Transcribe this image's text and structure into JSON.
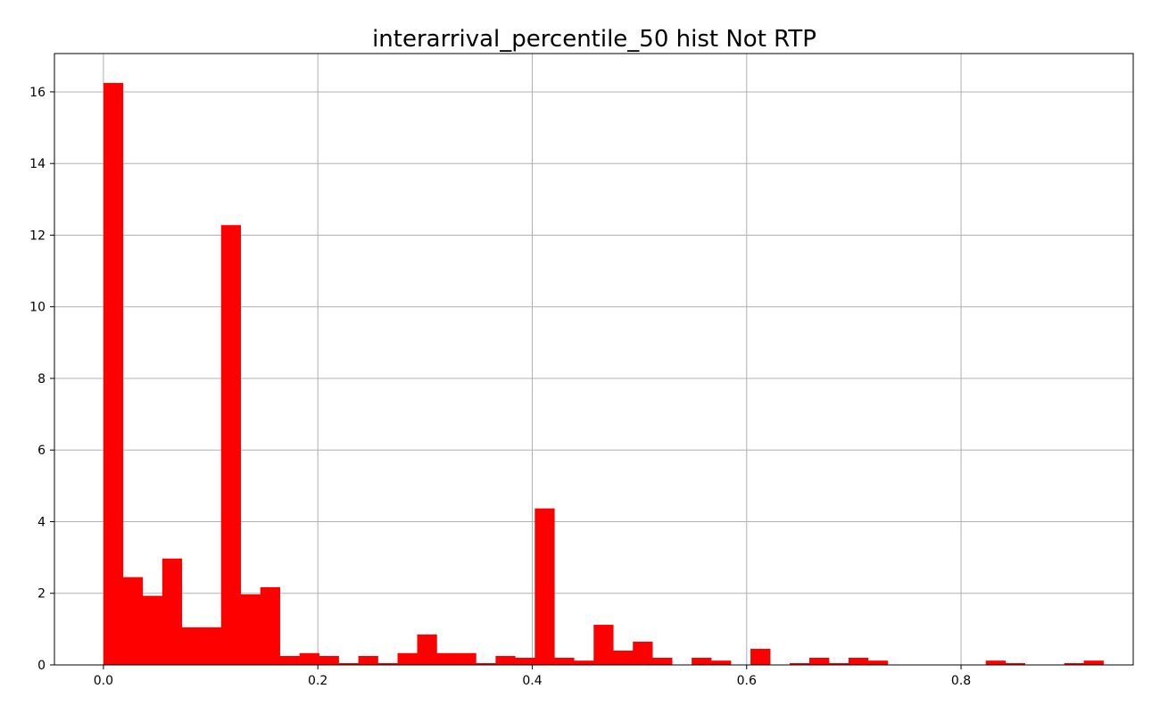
{
  "chart_data": {
    "type": "bar",
    "title": "interarrival_percentile_50 hist Not RTP",
    "xlabel": "",
    "ylabel": "",
    "xlim": [
      -0.0457,
      0.9606
    ],
    "ylim": [
      0,
      17.07
    ],
    "x_ticks": [
      0.0,
      0.2,
      0.4,
      0.6,
      0.8
    ],
    "x_tick_labels": [
      "0.0",
      "0.2",
      "0.4",
      "0.6",
      "0.8"
    ],
    "y_ticks": [
      0,
      2,
      4,
      6,
      8,
      10,
      12,
      14,
      16
    ],
    "y_tick_labels": [
      "0",
      "2",
      "4",
      "6",
      "8",
      "10",
      "12",
      "14",
      "16"
    ],
    "grid": true,
    "bar_color": "#ff0000",
    "bin_start": 0.0,
    "bin_width": 0.01829,
    "values": [
      16.25,
      2.45,
      1.93,
      2.97,
      1.05,
      1.05,
      12.28,
      1.97,
      2.17,
      0.25,
      0.33,
      0.25,
      0.05,
      0.25,
      0.05,
      0.33,
      0.85,
      0.33,
      0.33,
      0.05,
      0.25,
      0.2,
      4.37,
      0.2,
      0.12,
      1.12,
      0.4,
      0.65,
      0.2,
      0,
      0.2,
      0.12,
      0,
      0.45,
      0,
      0.05,
      0.2,
      0.05,
      0.2,
      0.12,
      0,
      0,
      0,
      0,
      0,
      0.12,
      0.05,
      0,
      0,
      0.05,
      0.12
    ]
  }
}
